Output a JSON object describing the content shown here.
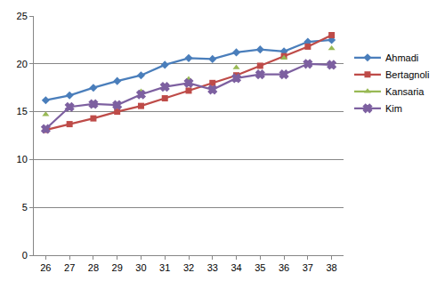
{
  "chart_data": {
    "type": "line",
    "categories": [
      "26",
      "27",
      "28",
      "29",
      "30",
      "31",
      "32",
      "33",
      "34",
      "35",
      "36",
      "37",
      "38"
    ],
    "series": [
      {
        "name": "Ahmadi",
        "color": "#4a7ebb",
        "marker": "diamond",
        "values": [
          16.2,
          16.7,
          17.5,
          18.2,
          18.8,
          19.9,
          20.6,
          20.5,
          21.2,
          21.5,
          21.3,
          22.3,
          22.5
        ]
      },
      {
        "name": "Bertagnoli",
        "color": "#be4b48",
        "marker": "square",
        "values": [
          13.1,
          13.7,
          14.3,
          15.0,
          15.6,
          16.4,
          17.2,
          18.0,
          18.8,
          19.8,
          20.8,
          21.8,
          23.0
        ]
      },
      {
        "name": "Kansaria",
        "color": "#98b954",
        "marker": "triangle-up",
        "values": [
          14.7,
          null,
          15.8,
          null,
          17.1,
          null,
          18.4,
          null,
          19.6,
          null,
          20.6,
          null,
          21.6
        ]
      },
      {
        "name": "Kim",
        "color": "#7d60a0",
        "marker": "x",
        "values": [
          13.2,
          15.5,
          15.8,
          15.7,
          16.8,
          17.6,
          18.0,
          17.3,
          18.5,
          18.9,
          18.9,
          20.0,
          19.9
        ]
      }
    ],
    "ylim": [
      0,
      25
    ],
    "yticks": [
      0,
      5,
      10,
      15,
      20,
      25
    ],
    "grid": true,
    "legend": "right"
  }
}
